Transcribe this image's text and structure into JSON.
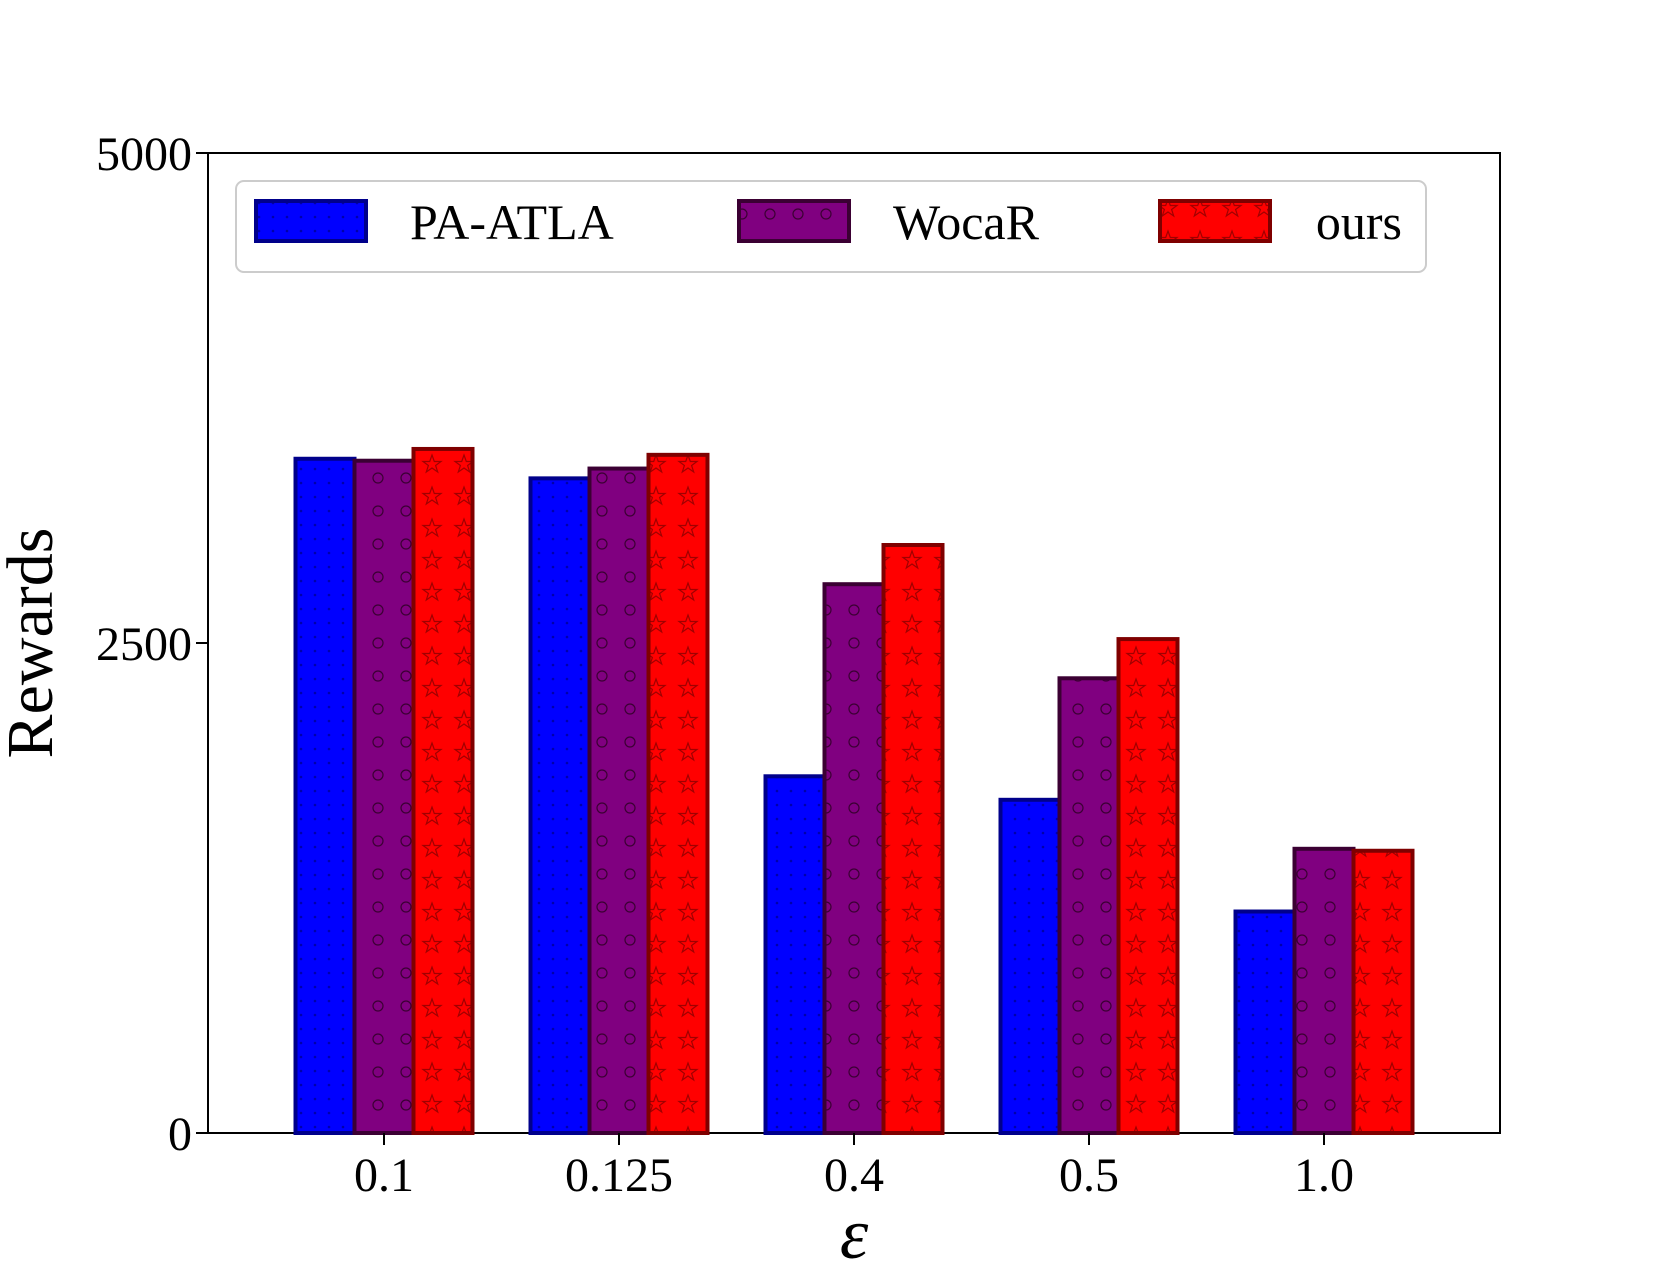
{
  "chart_data": {
    "type": "bar",
    "title": "",
    "xlabel": "ε",
    "ylabel": "Rewards",
    "categories": [
      "0.1",
      "0.125",
      "0.4",
      "0.5",
      "1.0"
    ],
    "ylim": [
      0,
      5000
    ],
    "yticks": [
      "0",
      "2500",
      "5000"
    ],
    "ytick_values": [
      0,
      2500,
      5000
    ],
    "grid": false,
    "legend_position": "top",
    "series": [
      {
        "name": "PA-ATLA",
        "values": [
          3440,
          3340,
          1820,
          1700,
          1130
        ],
        "color": "#0000ff",
        "edge": "#00008b",
        "hatch": "dots"
      },
      {
        "name": "WocaR",
        "values": [
          3430,
          3390,
          2800,
          2320,
          1450
        ],
        "color": "#800080",
        "edge": "#3b0033",
        "hatch": "circles"
      },
      {
        "name": "ours",
        "values": [
          3490,
          3460,
          3000,
          2520,
          1440
        ],
        "color": "#ff0000",
        "edge": "#7f0000",
        "hatch": "stars"
      }
    ]
  }
}
